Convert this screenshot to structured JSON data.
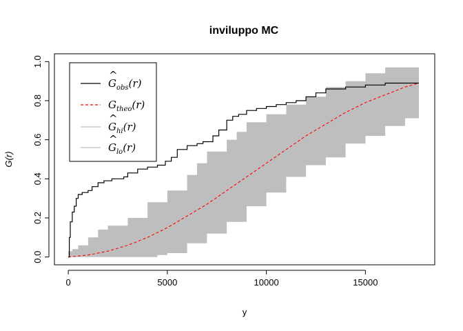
{
  "chart_data": {
    "type": "line",
    "title": "inviluppo MC",
    "xlabel": "y",
    "ylabel": "G(r)",
    "xlim": [
      -700,
      18500
    ],
    "ylim": [
      -0.04,
      1.04
    ],
    "x_ticks": [
      0,
      5000,
      10000,
      15000
    ],
    "y_ticks": [
      0.0,
      0.2,
      0.4,
      0.6,
      0.8,
      1.0
    ],
    "x_tick_labels": [
      "0",
      "5000",
      "10000",
      "15000"
    ],
    "y_tick_labels": [
      "0.0",
      "0.2",
      "0.4",
      "0.6",
      "0.8",
      "1.0"
    ],
    "legend_position": "top-left",
    "colors": {
      "obs": "#000000",
      "theo": "#ff0000",
      "envelope": "#bebebe"
    },
    "series": [
      {
        "name": "obs",
        "label_main": "G",
        "label_sub": "obs",
        "label_arg": "(r)",
        "hat": true,
        "style": "solid-step",
        "color": "#000000",
        "x": [
          0,
          50,
          100,
          200,
          300,
          400,
          500,
          700,
          1000,
          1200,
          1500,
          1800,
          2200,
          2800,
          3000,
          3500,
          4000,
          4500,
          4900,
          5200,
          5500,
          6000,
          6500,
          6800,
          7300,
          7600,
          8000,
          8300,
          8600,
          9000,
          9500,
          10000,
          10500,
          11000,
          11500,
          12000,
          12500,
          13000,
          14000,
          15000,
          16000,
          17700
        ],
        "y": [
          0.0,
          0.1,
          0.18,
          0.23,
          0.26,
          0.3,
          0.32,
          0.33,
          0.34,
          0.36,
          0.38,
          0.39,
          0.4,
          0.41,
          0.43,
          0.45,
          0.46,
          0.47,
          0.49,
          0.51,
          0.55,
          0.57,
          0.58,
          0.59,
          0.62,
          0.65,
          0.7,
          0.72,
          0.73,
          0.75,
          0.76,
          0.77,
          0.78,
          0.79,
          0.8,
          0.82,
          0.84,
          0.86,
          0.87,
          0.88,
          0.89,
          0.89
        ]
      },
      {
        "name": "theo",
        "label_main": "G",
        "label_sub": "theo",
        "label_arg": "(r)",
        "hat": false,
        "style": "dashed",
        "color": "#ff0000",
        "x": [
          0,
          1000,
          2000,
          3000,
          4000,
          5000,
          6000,
          7000,
          8000,
          9000,
          10000,
          11000,
          12000,
          13000,
          14000,
          15000,
          16000,
          17000,
          17700
        ],
        "y": [
          0.0,
          0.01,
          0.03,
          0.06,
          0.1,
          0.15,
          0.21,
          0.27,
          0.34,
          0.41,
          0.48,
          0.55,
          0.62,
          0.68,
          0.74,
          0.79,
          0.83,
          0.87,
          0.89
        ]
      },
      {
        "name": "hi",
        "label_main": "G",
        "label_sub": "hi",
        "label_arg": "(r)",
        "hat": true,
        "style": "envelope-upper",
        "color": "#bebebe",
        "x": [
          0,
          200,
          500,
          1000,
          1500,
          2000,
          3000,
          4000,
          5000,
          6000,
          6500,
          7000,
          8000,
          8500,
          9000,
          10000,
          11000,
          12000,
          13000,
          14000,
          15000,
          16000,
          17700
        ],
        "y": [
          0.03,
          0.04,
          0.06,
          0.1,
          0.14,
          0.16,
          0.2,
          0.28,
          0.34,
          0.42,
          0.48,
          0.54,
          0.6,
          0.64,
          0.69,
          0.73,
          0.78,
          0.82,
          0.87,
          0.9,
          0.94,
          0.97,
          1.0
        ]
      },
      {
        "name": "lo",
        "label_main": "G",
        "label_sub": "lo",
        "label_arg": "(r)",
        "hat": true,
        "style": "envelope-lower",
        "color": "#bebebe",
        "x": [
          0,
          1000,
          2000,
          3000,
          4000,
          4500,
          5000,
          6000,
          7000,
          8000,
          9000,
          10000,
          11000,
          12000,
          13000,
          14000,
          15000,
          16000,
          17000,
          17700
        ],
        "y": [
          0.0,
          0.0,
          0.0,
          0.0,
          0.0,
          0.01,
          0.02,
          0.07,
          0.12,
          0.18,
          0.26,
          0.33,
          0.41,
          0.47,
          0.51,
          0.58,
          0.62,
          0.67,
          0.71,
          0.71
        ]
      }
    ]
  }
}
